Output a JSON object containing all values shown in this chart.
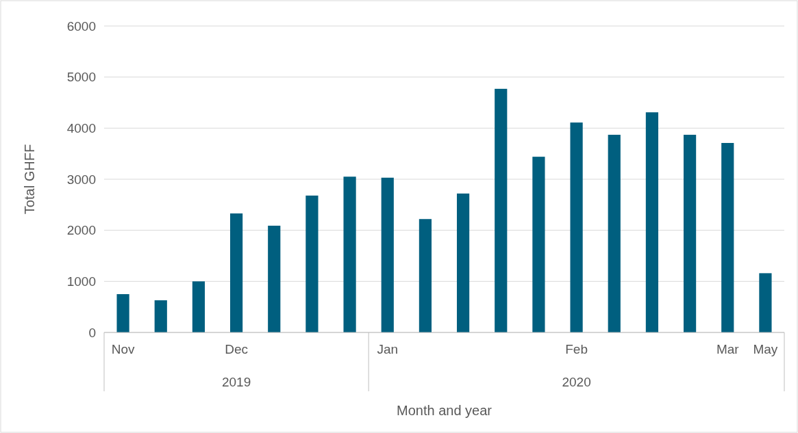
{
  "chart_data": {
    "type": "bar",
    "xlabel": "Month and year",
    "ylabel": "Total GHFF",
    "categories": [
      "Nov",
      null,
      null,
      "Dec",
      null,
      null,
      null,
      "Jan",
      null,
      null,
      null,
      null,
      "Feb",
      null,
      null,
      null,
      "Mar",
      "May"
    ],
    "values": [
      750,
      630,
      1000,
      2330,
      2090,
      2680,
      3050,
      3030,
      2220,
      2720,
      4770,
      3440,
      4110,
      3870,
      4310,
      3870,
      3710,
      1160
    ],
    "color": "#005f7f",
    "ylim": [
      0,
      6000
    ],
    "yticks": [
      0,
      1000,
      2000,
      3000,
      4000,
      5000,
      6000
    ],
    "grid": "y",
    "annotations": [
      "2019",
      "2020"
    ]
  }
}
